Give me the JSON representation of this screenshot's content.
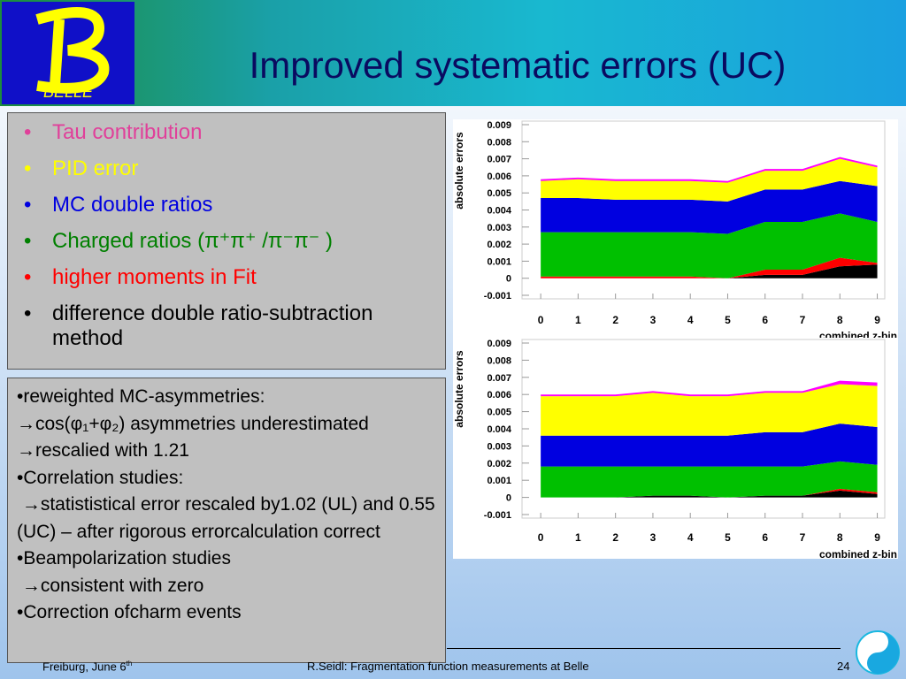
{
  "header": {
    "title": "Improved systematic errors (UC)",
    "logo": "BELLE"
  },
  "bullets": [
    {
      "text": "Tau contribution",
      "color": "#e0409a"
    },
    {
      "text": "PID error",
      "color": "#ffff00"
    },
    {
      "text": "MC double ratios",
      "color": "#0000e0"
    },
    {
      "text": "Charged ratios (π⁺π⁺ /π⁻π⁻ )",
      "color": "#008000"
    },
    {
      "text": "higher moments in Fit",
      "color": "#ff0000"
    },
    {
      "text": "difference double ratio-subtraction method",
      "color": "#000000"
    }
  ],
  "notes": [
    "•reweighted MC-asymmetries:",
    "→cos(φ₁+φ₂) asymmetries underestimated →rescalied with 1.21",
    "•Correlation studies:",
    " →statististical error rescaled by1.02 (UL) and 0.55 (UC) – after rigorous errorcalculation correct",
    "•Beampolarization studies",
    " →consistent with zero",
    "•Correction ofcharm events"
  ],
  "footer": {
    "date": "Freiburg, June 6",
    "date_sup": "th",
    "talk": "R.Seidl: Fragmentation function measurements at Belle",
    "page": "24"
  },
  "chart_data": [
    {
      "type": "stacked_area",
      "x_label": "combined z-bin",
      "y_label": "absolute errors",
      "x": [
        0,
        1,
        2,
        3,
        4,
        5,
        6,
        7,
        8,
        9
      ],
      "xlim": [
        -0.5,
        9.2
      ],
      "xticks": [
        0,
        1,
        2,
        3,
        4,
        5,
        6,
        7,
        8,
        9
      ],
      "ylim": [
        -0.001,
        0.009
      ],
      "yticks": [
        -0.001,
        0,
        0.001,
        0.002,
        0.003,
        0.004,
        0.005,
        0.006,
        0.007,
        0.008,
        0.009
      ],
      "series": [
        {
          "color": "#000000",
          "values": [
            0,
            0,
            0,
            0,
            0,
            0,
            0.0002,
            0.0002,
            0.0007,
            0.0008
          ]
        },
        {
          "color": "#ff0000",
          "values": [
            0.0001,
            0.0001,
            0.0001,
            0.0001,
            0.0001,
            0,
            0.0003,
            0.0003,
            0.0005,
            0.0001
          ]
        },
        {
          "color": "#00c000",
          "values": [
            0.0026,
            0.0026,
            0.0026,
            0.0026,
            0.0026,
            0.0026,
            0.0028,
            0.0028,
            0.0026,
            0.0024
          ]
        },
        {
          "color": "#0000e0",
          "values": [
            0.002,
            0.002,
            0.0019,
            0.0019,
            0.0019,
            0.0019,
            0.0019,
            0.0019,
            0.0019,
            0.0021
          ]
        },
        {
          "color": "#ffff00",
          "values": [
            0.001,
            0.0011,
            0.0011,
            0.0011,
            0.0011,
            0.0011,
            0.0011,
            0.0011,
            0.0013,
            0.0011
          ]
        },
        {
          "color": "#ff00ff",
          "values": [
            0.0001,
            0.0001,
            0.0001,
            0.0001,
            0.0001,
            0.0001,
            0.0001,
            0.0001,
            0.0001,
            0.0001
          ]
        }
      ]
    },
    {
      "type": "stacked_area",
      "x_label": "combined z-bin",
      "y_label": "absolute errors",
      "x": [
        0,
        1,
        2,
        3,
        4,
        5,
        6,
        7,
        8,
        9
      ],
      "xlim": [
        -0.5,
        9.2
      ],
      "xticks": [
        0,
        1,
        2,
        3,
        4,
        5,
        6,
        7,
        8,
        9
      ],
      "ylim": [
        -0.001,
        0.009
      ],
      "yticks": [
        -0.001,
        0,
        0.001,
        0.002,
        0.003,
        0.004,
        0.005,
        0.006,
        0.007,
        0.008,
        0.009
      ],
      "series": [
        {
          "color": "#000000",
          "values": [
            0,
            0,
            0,
            0.0001,
            0.0001,
            0,
            0.0001,
            0.0001,
            0.0004,
            0.0002
          ]
        },
        {
          "color": "#ff0000",
          "values": [
            0,
            0,
            0,
            0,
            0,
            0,
            0,
            0,
            0.0001,
            0.0001
          ]
        },
        {
          "color": "#00c000",
          "values": [
            0.0018,
            0.0018,
            0.0018,
            0.0017,
            0.0017,
            0.0018,
            0.0017,
            0.0017,
            0.0016,
            0.0016
          ]
        },
        {
          "color": "#0000e0",
          "values": [
            0.0018,
            0.0018,
            0.0018,
            0.0018,
            0.0018,
            0.0018,
            0.002,
            0.002,
            0.0022,
            0.0022
          ]
        },
        {
          "color": "#ffff00",
          "values": [
            0.0023,
            0.0023,
            0.0023,
            0.0025,
            0.0023,
            0.0023,
            0.0023,
            0.0023,
            0.0023,
            0.0024
          ]
        },
        {
          "color": "#ff00ff",
          "values": [
            0.0001,
            0.0001,
            0.0001,
            0.0001,
            0.0001,
            0.0001,
            0.0001,
            0.0001,
            0.0002,
            0.0002
          ]
        }
      ]
    }
  ]
}
